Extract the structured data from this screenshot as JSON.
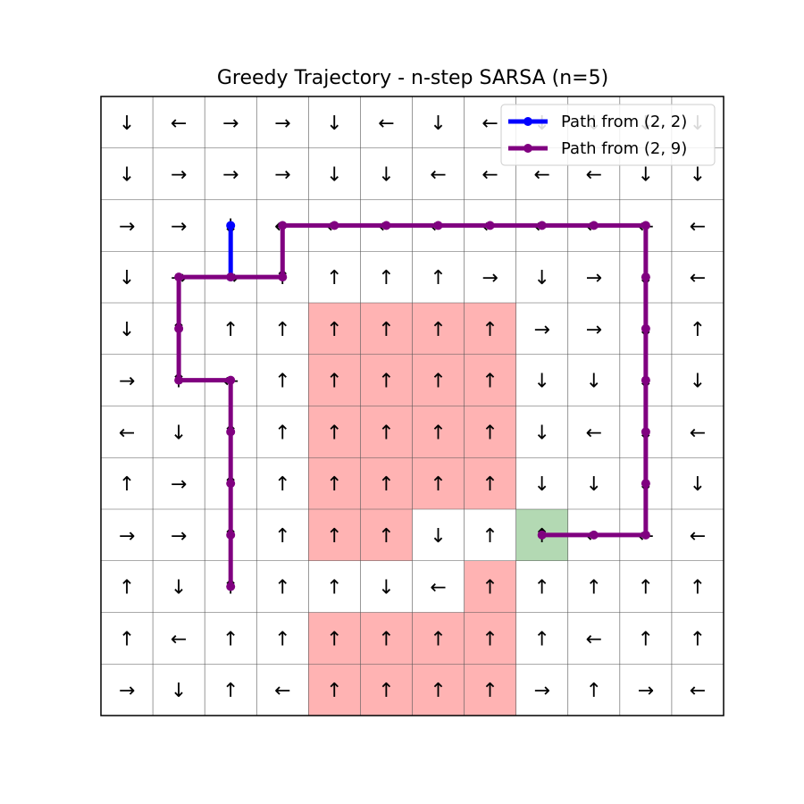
{
  "chart_data": {
    "type": "heatmap",
    "title": "Greedy Trajectory - n-step SARSA (n=5)",
    "grid_size": 12,
    "colors": {
      "cliff": "#ffb3b3",
      "goal": "#b3d9b3",
      "empty": "#ffffff",
      "gridline": "#555555",
      "border": "#000000"
    },
    "policy": [
      [
        "↓",
        "←",
        "→",
        "→",
        "↓",
        "←",
        "↓",
        "←",
        "↓",
        "↓",
        "↓",
        "↓"
      ],
      [
        "↓",
        "→",
        "→",
        "→",
        "↓",
        "↓",
        "←",
        "←",
        "←",
        "←",
        "↓",
        "↓"
      ],
      [
        "→",
        "→",
        "↓",
        "←",
        "←",
        "←",
        "←",
        "←",
        "←",
        "←",
        "←",
        "←"
      ],
      [
        "↓",
        "→",
        "→",
        "↑",
        "↑",
        "↑",
        "↑",
        "→",
        "↓",
        "→",
        "↓",
        "←"
      ],
      [
        "↓",
        "↑",
        "↑",
        "↑",
        "↑",
        "↑",
        "↑",
        "↑",
        "→",
        "→",
        "↓",
        "↑"
      ],
      [
        "→",
        "↑",
        "←",
        "↑",
        "↑",
        "↑",
        "↑",
        "↑",
        "↓",
        "↓",
        "↓",
        "↓"
      ],
      [
        "←",
        "↓",
        "↑",
        "↑",
        "↑",
        "↑",
        "↑",
        "↑",
        "↓",
        "←",
        "↓",
        "←"
      ],
      [
        "↑",
        "→",
        "↑",
        "↑",
        "↑",
        "↑",
        "↑",
        "↑",
        "↓",
        "↓",
        "↓",
        "↓"
      ],
      [
        "→",
        "→",
        "↑",
        "↑",
        "↑",
        "↑",
        "↓",
        "↑",
        "↑",
        "←",
        "←",
        "←"
      ],
      [
        "↑",
        "↓",
        "↑",
        "↑",
        "↑",
        "↓",
        "←",
        "↑",
        "↑",
        "↑",
        "↑",
        "↑"
      ],
      [
        "↑",
        "←",
        "↑",
        "↑",
        "↑",
        "↑",
        "↑",
        "↑",
        "↑",
        "←",
        "↑",
        "↑"
      ],
      [
        "→",
        "↓",
        "↑",
        "←",
        "↑",
        "↑",
        "↑",
        "↑",
        "→",
        "↑",
        "→",
        "←"
      ]
    ],
    "cliff_cells": [
      [
        4,
        4
      ],
      [
        4,
        5
      ],
      [
        4,
        6
      ],
      [
        4,
        7
      ],
      [
        5,
        4
      ],
      [
        5,
        5
      ],
      [
        5,
        6
      ],
      [
        5,
        7
      ],
      [
        6,
        4
      ],
      [
        6,
        5
      ],
      [
        6,
        6
      ],
      [
        6,
        7
      ],
      [
        7,
        4
      ],
      [
        7,
        5
      ],
      [
        7,
        6
      ],
      [
        7,
        7
      ],
      [
        8,
        4
      ],
      [
        8,
        5
      ],
      [
        9,
        7
      ],
      [
        10,
        4
      ],
      [
        10,
        5
      ],
      [
        10,
        6
      ],
      [
        10,
        7
      ],
      [
        11,
        4
      ],
      [
        11,
        5
      ],
      [
        11,
        6
      ],
      [
        11,
        7
      ]
    ],
    "goal_cell": [
      8,
      8
    ],
    "series": [
      {
        "name": "Path from (2, 2)",
        "color": "#0000ff",
        "points": [
          [
            2,
            2
          ],
          [
            3,
            2
          ]
        ]
      },
      {
        "name": "Path from (2, 9)",
        "color": "#800080",
        "points": [
          [
            9,
            2
          ],
          [
            8,
            2
          ],
          [
            7,
            2
          ],
          [
            6,
            2
          ],
          [
            5,
            2
          ],
          [
            5,
            1
          ],
          [
            4,
            1
          ],
          [
            3,
            1
          ],
          [
            3,
            2
          ],
          [
            3,
            3
          ],
          [
            2,
            3
          ],
          [
            2,
            4
          ],
          [
            2,
            5
          ],
          [
            2,
            6
          ],
          [
            2,
            7
          ],
          [
            2,
            8
          ],
          [
            2,
            9
          ],
          [
            2,
            10
          ],
          [
            3,
            10
          ],
          [
            4,
            10
          ],
          [
            5,
            10
          ],
          [
            6,
            10
          ],
          [
            7,
            10
          ],
          [
            8,
            10
          ],
          [
            8,
            9
          ],
          [
            8,
            8
          ]
        ]
      }
    ],
    "legend": {
      "placement": "upper right"
    }
  }
}
